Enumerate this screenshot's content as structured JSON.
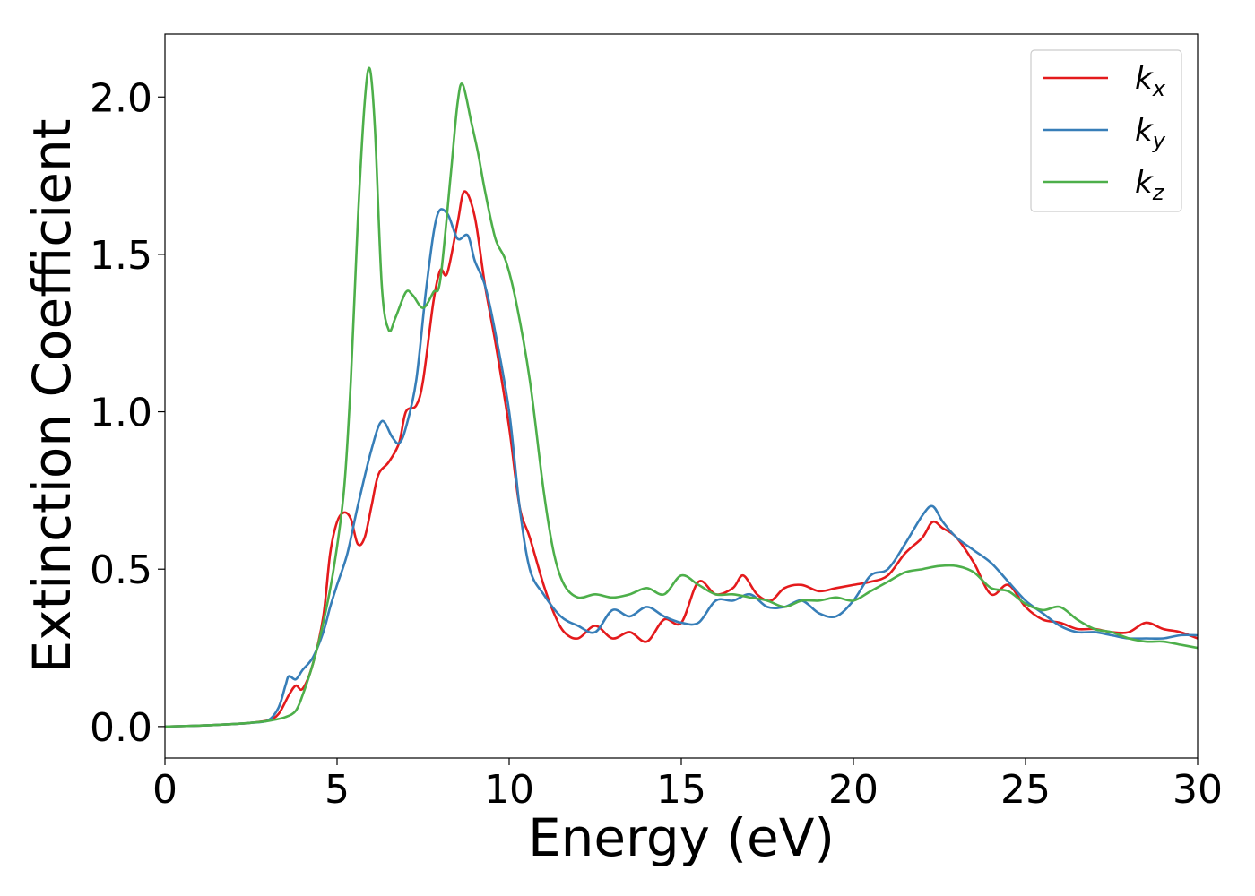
{
  "chart_data": {
    "type": "line",
    "xlabel": "Energy (eV)",
    "ylabel": "Extinction Coefficient",
    "xlim": [
      0,
      30
    ],
    "ylim": [
      -0.1,
      2.2
    ],
    "xticks": [
      0,
      5,
      10,
      15,
      20,
      25,
      30
    ],
    "xtick_labels": [
      "0",
      "5",
      "10",
      "15",
      "20",
      "25",
      "30"
    ],
    "yticks": [
      0.0,
      0.5,
      1.0,
      1.5,
      2.0
    ],
    "ytick_labels": [
      "0.0",
      "0.5",
      "1.0",
      "1.5",
      "2.0"
    ],
    "grid": false,
    "legend_position": "top-right",
    "series": [
      {
        "name": "k_x",
        "base": "k",
        "sub": "x",
        "color": "#e41a1c",
        "x": [
          0,
          1,
          2,
          2.5,
          3,
          3.3,
          3.6,
          3.8,
          4.0,
          4.3,
          4.6,
          4.8,
          5.0,
          5.2,
          5.4,
          5.6,
          5.8,
          6.0,
          6.2,
          6.5,
          6.8,
          7.0,
          7.3,
          7.5,
          7.8,
          8.0,
          8.2,
          8.5,
          8.7,
          9.0,
          9.3,
          9.6,
          10.0,
          10.3,
          10.6,
          11.0,
          11.3,
          11.6,
          12.0,
          12.5,
          13.0,
          13.5,
          14.0,
          14.5,
          15.0,
          15.5,
          16.0,
          16.5,
          16.8,
          17.2,
          17.6,
          18.0,
          18.5,
          19.0,
          19.5,
          20.0,
          20.5,
          21.0,
          21.5,
          22.0,
          22.3,
          22.6,
          23.0,
          23.5,
          24.0,
          24.5,
          25.0,
          25.5,
          26.0,
          26.5,
          27.0,
          27.5,
          28.0,
          28.5,
          29.0,
          29.5,
          30.0
        ],
        "y": [
          0.0,
          0.003,
          0.008,
          0.012,
          0.02,
          0.04,
          0.1,
          0.13,
          0.12,
          0.2,
          0.35,
          0.55,
          0.65,
          0.68,
          0.66,
          0.58,
          0.6,
          0.7,
          0.8,
          0.84,
          0.9,
          1.0,
          1.02,
          1.1,
          1.35,
          1.45,
          1.44,
          1.6,
          1.7,
          1.62,
          1.4,
          1.22,
          0.95,
          0.7,
          0.6,
          0.45,
          0.36,
          0.3,
          0.28,
          0.32,
          0.28,
          0.3,
          0.27,
          0.34,
          0.33,
          0.46,
          0.42,
          0.44,
          0.48,
          0.42,
          0.4,
          0.44,
          0.45,
          0.43,
          0.44,
          0.45,
          0.46,
          0.48,
          0.55,
          0.6,
          0.65,
          0.63,
          0.6,
          0.52,
          0.42,
          0.45,
          0.38,
          0.34,
          0.33,
          0.31,
          0.31,
          0.3,
          0.3,
          0.33,
          0.31,
          0.3,
          0.28
        ]
      },
      {
        "name": "k_y",
        "base": "k",
        "sub": "y",
        "color": "#377eb8",
        "x": [
          0,
          1,
          2,
          2.5,
          3,
          3.3,
          3.5,
          3.6,
          3.8,
          4.0,
          4.3,
          4.6,
          4.8,
          5.0,
          5.3,
          5.6,
          6.0,
          6.3,
          6.6,
          6.8,
          7.0,
          7.3,
          7.6,
          7.9,
          8.2,
          8.5,
          8.8,
          9.0,
          9.3,
          9.6,
          10.0,
          10.3,
          10.6,
          11.0,
          11.5,
          12.0,
          12.5,
          13.0,
          13.5,
          14.0,
          14.5,
          15.0,
          15.5,
          16.0,
          16.5,
          17.0,
          17.5,
          18.0,
          18.5,
          19.0,
          19.5,
          20.0,
          20.5,
          21.0,
          21.5,
          22.0,
          22.3,
          22.6,
          23.0,
          23.5,
          24.0,
          24.5,
          25.0,
          25.5,
          26.0,
          26.5,
          27.0,
          27.5,
          28.0,
          28.5,
          29.0,
          29.5,
          30.0
        ],
        "y": [
          0.0,
          0.003,
          0.008,
          0.012,
          0.02,
          0.06,
          0.13,
          0.16,
          0.15,
          0.18,
          0.22,
          0.3,
          0.38,
          0.45,
          0.55,
          0.7,
          0.88,
          0.97,
          0.92,
          0.9,
          0.95,
          1.1,
          1.4,
          1.62,
          1.63,
          1.55,
          1.56,
          1.48,
          1.4,
          1.25,
          1.0,
          0.7,
          0.5,
          0.42,
          0.35,
          0.32,
          0.3,
          0.37,
          0.35,
          0.38,
          0.35,
          0.33,
          0.33,
          0.4,
          0.4,
          0.42,
          0.38,
          0.38,
          0.4,
          0.36,
          0.35,
          0.4,
          0.48,
          0.5,
          0.58,
          0.67,
          0.7,
          0.65,
          0.6,
          0.56,
          0.52,
          0.46,
          0.4,
          0.36,
          0.32,
          0.3,
          0.3,
          0.29,
          0.28,
          0.28,
          0.28,
          0.29,
          0.29
        ]
      },
      {
        "name": "k_z",
        "base": "k",
        "sub": "z",
        "color": "#4daf4a",
        "x": [
          0,
          1,
          2,
          2.5,
          3,
          3.5,
          3.8,
          4.0,
          4.3,
          4.6,
          4.9,
          5.2,
          5.4,
          5.6,
          5.8,
          5.95,
          6.1,
          6.3,
          6.5,
          6.7,
          7.0,
          7.2,
          7.5,
          7.8,
          8.0,
          8.3,
          8.5,
          8.65,
          8.9,
          9.1,
          9.3,
          9.6,
          9.9,
          10.2,
          10.6,
          11.0,
          11.3,
          11.6,
          12.0,
          12.5,
          13.0,
          13.5,
          14.0,
          14.5,
          15.0,
          15.5,
          16.0,
          16.5,
          17.0,
          17.5,
          18.0,
          18.5,
          19.0,
          19.5,
          20.0,
          20.5,
          21.0,
          21.5,
          22.0,
          22.5,
          23.0,
          23.5,
          24.0,
          24.5,
          25.0,
          25.5,
          26.0,
          26.5,
          27.0,
          27.5,
          28.0,
          28.5,
          29.0,
          29.5,
          30.0
        ],
        "y": [
          0.0,
          0.003,
          0.008,
          0.012,
          0.018,
          0.03,
          0.05,
          0.1,
          0.2,
          0.33,
          0.5,
          0.75,
          1.1,
          1.6,
          1.98,
          2.09,
          1.9,
          1.4,
          1.26,
          1.3,
          1.38,
          1.37,
          1.33,
          1.38,
          1.42,
          1.75,
          1.98,
          2.04,
          1.92,
          1.82,
          1.7,
          1.55,
          1.48,
          1.35,
          1.1,
          0.75,
          0.55,
          0.45,
          0.41,
          0.42,
          0.41,
          0.42,
          0.44,
          0.42,
          0.48,
          0.45,
          0.42,
          0.42,
          0.41,
          0.4,
          0.38,
          0.4,
          0.4,
          0.41,
          0.4,
          0.43,
          0.46,
          0.49,
          0.5,
          0.51,
          0.51,
          0.49,
          0.44,
          0.43,
          0.39,
          0.37,
          0.38,
          0.34,
          0.31,
          0.3,
          0.28,
          0.27,
          0.27,
          0.26,
          0.25
        ]
      }
    ]
  }
}
